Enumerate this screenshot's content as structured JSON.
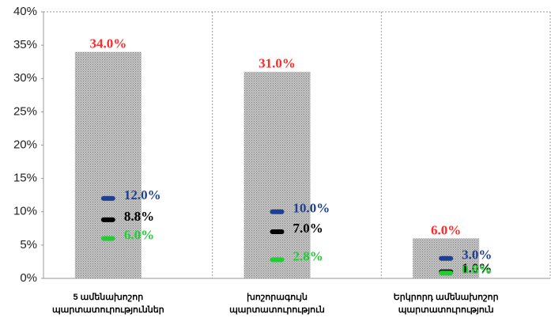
{
  "chart_data": {
    "type": "bar",
    "categories": [
      "5 ամենախոշոր պարտատուրություններ",
      "խոշորագույն պարտատուրություն",
      "Երկրորդ ամենախոշոր պարտատուրություն"
    ],
    "values": [
      34.0,
      31.0,
      6.0
    ],
    "value_labels": [
      "34.0%",
      "31.0%",
      "6.0%"
    ],
    "color": "#a8a8a8",
    "label_color": "#ff2a2a",
    "series": [
      {
        "color": "#1f3f8f",
        "values": [
          12.0,
          10.0,
          3.0
        ],
        "value_labels": [
          "12.0%",
          "10.0%",
          "3.0%"
        ]
      },
      {
        "color": "#000000",
        "values": [
          8.8,
          7.0,
          1.0
        ],
        "value_labels": [
          "8.8%",
          "7.0%",
          "1.0%"
        ]
      },
      {
        "color": "#22cc33",
        "values": [
          6.0,
          2.8,
          0.8
        ],
        "value_labels": [
          "6.0%",
          "2.8%",
          "0.8%"
        ]
      }
    ],
    "ylim": [
      0,
      40
    ],
    "yticks": [
      {
        "value": 0,
        "label": "0%"
      },
      {
        "value": 5,
        "label": "5%"
      },
      {
        "value": 10,
        "label": "10%"
      },
      {
        "value": 15,
        "label": "15%"
      },
      {
        "value": 20,
        "label": "20%"
      },
      {
        "value": 25,
        "label": "25%"
      },
      {
        "value": 30,
        "label": "30%"
      },
      {
        "value": 35,
        "label": "35%"
      },
      {
        "value": 40,
        "label": "40%"
      }
    ]
  }
}
